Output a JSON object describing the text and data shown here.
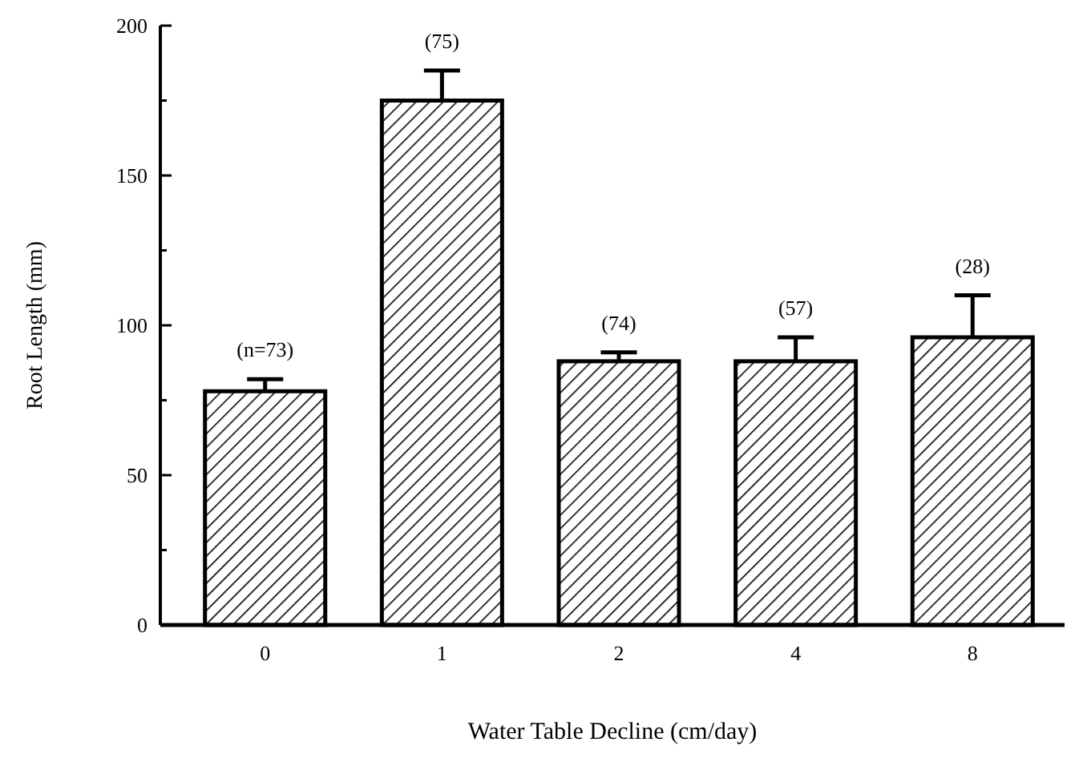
{
  "chart_data": {
    "type": "bar",
    "xlabel": "Water Table Decline (cm/day)",
    "ylabel": "Root Length (mm)",
    "categories": [
      "0",
      "1",
      "2",
      "4",
      "8"
    ],
    "values": [
      78,
      175,
      88,
      88,
      96
    ],
    "errors": [
      [
        78,
        82
      ],
      [
        175,
        185
      ],
      [
        88,
        91
      ],
      [
        88,
        96
      ],
      [
        96,
        110
      ]
    ],
    "color": "#000000",
    "ylim": [
      0,
      200
    ],
    "yticks": [
      0,
      {
        "value": 25,
        "label": null
      },
      50,
      {
        "value": 75,
        "label": null
      },
      100,
      {
        "value": 125,
        "label": null
      },
      150,
      {
        "value": 175,
        "label": null
      },
      200
    ],
    "annotations": [
      {
        "text": "(n=73)",
        "x": "0",
        "y": 82
      },
      {
        "text": "(75)",
        "x": "1",
        "y": 185
      },
      {
        "text": "(74)",
        "x": "2",
        "y": 91
      },
      {
        "text": "(57)",
        "x": "4",
        "y": 96
      },
      {
        "text": "(28)",
        "x": "8",
        "y": 110
      }
    ]
  }
}
